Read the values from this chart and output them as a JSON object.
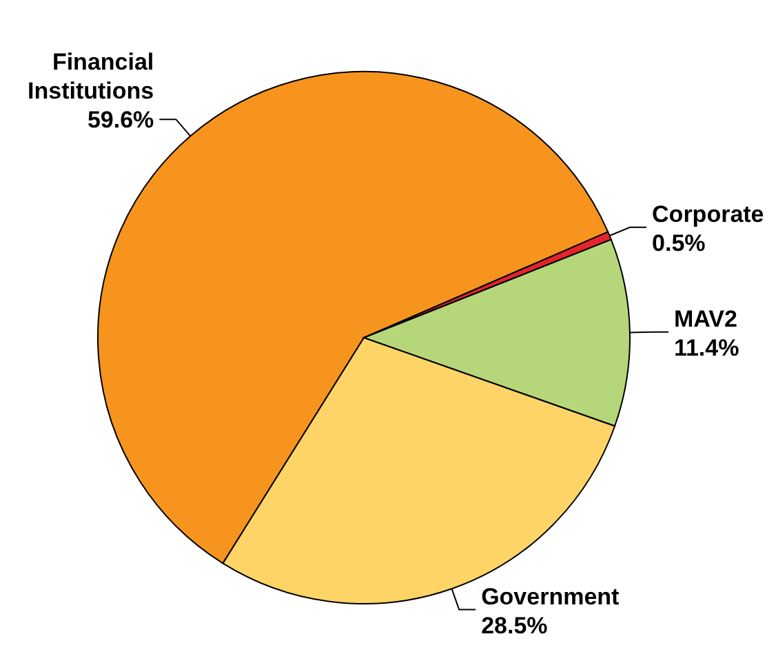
{
  "chart_data": {
    "type": "pie",
    "categories": [
      "Financial Institutions",
      "Corporate",
      "MAV2",
      "Government"
    ],
    "values": [
      59.6,
      0.5,
      11.4,
      28.5
    ],
    "colors": [
      "#f7941d",
      "#e3242b",
      "#b5d77a",
      "#ffd466"
    ],
    "value_labels": [
      "59.6%",
      "0.5%",
      "11.4%",
      "28.5%"
    ]
  }
}
